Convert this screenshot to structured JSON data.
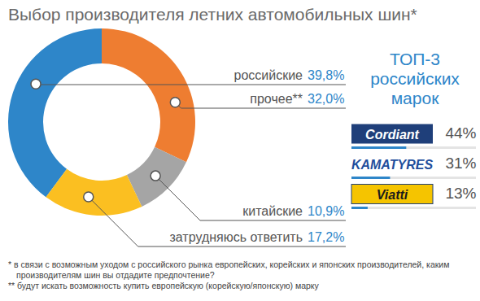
{
  "chart_data": [
    {
      "type": "pie",
      "title": "Выбор производителя летних автомобильных шин*",
      "categories": [
        "российские",
        "прочее**",
        "китайские",
        "затрудняюсь ответить"
      ],
      "values": [
        39.8,
        32.0,
        10.9,
        17.2
      ],
      "value_labels": [
        "39,8%",
        "32,0%",
        "10,9%",
        "17,2%"
      ],
      "colors": [
        "#2e86c9",
        "#ee7d31",
        "#a5a5a5",
        "#fbbf21"
      ],
      "data_labels": true,
      "notes": [
        "* в связи с возможным уходом с российского рынка европейских, корейских и японских производителей, каким производителям шин вы отдадите предпочтение?",
        "** будут искать возможность купить европейскую (корейскую/японскую) марку"
      ]
    },
    {
      "type": "bar",
      "orientation": "horizontal",
      "title": "ТОП-3 российских марок",
      "categories": [
        "Cordiant",
        "KAMATYRES",
        "Viatti"
      ],
      "values": [
        44,
        31,
        13
      ],
      "value_labels": [
        "44%",
        "31%",
        "13%"
      ],
      "color": "#2e86c9",
      "xlim": [
        0,
        100
      ],
      "data_labels": true,
      "tick_labels": false
    }
  ]
}
